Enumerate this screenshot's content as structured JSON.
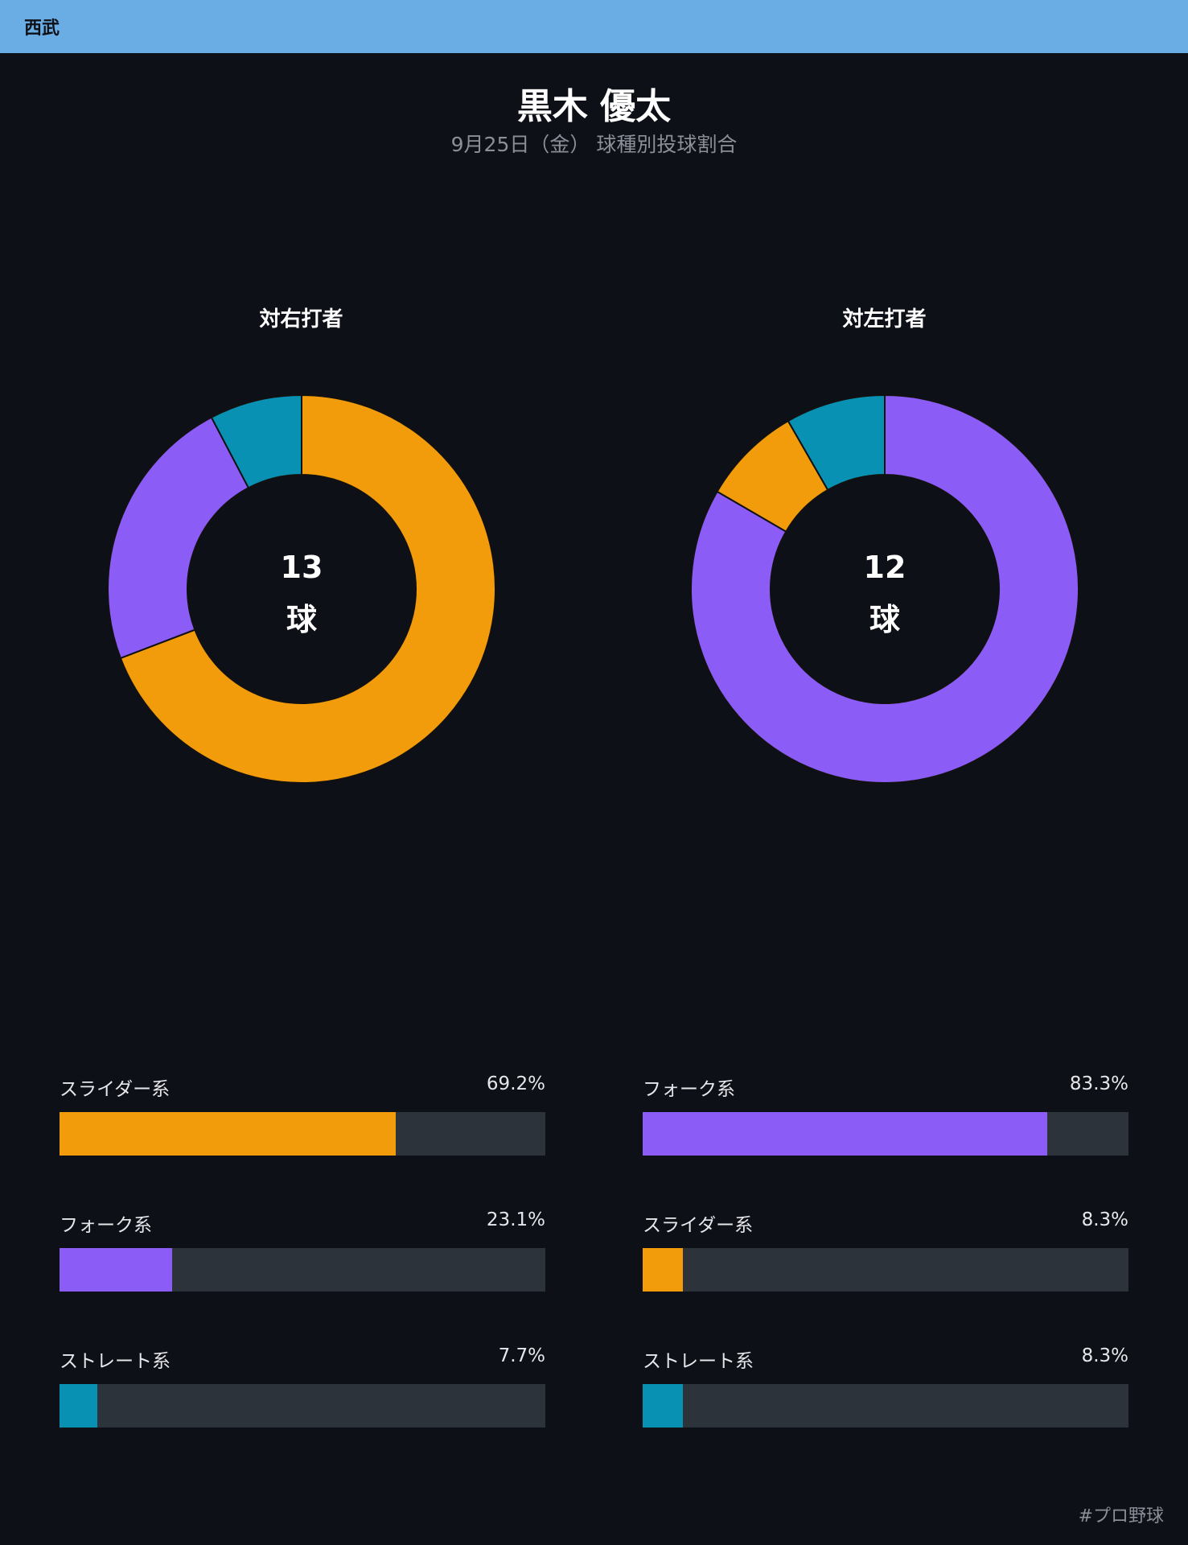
{
  "header": {
    "team": "西武",
    "bar_color": "#6aace4"
  },
  "title": "黒木 優太",
  "subtitle": "9月25日（金） 球種別投球割合",
  "colors": {
    "track": "#2d333b",
    "background": "#0e1017"
  },
  "chart_data": [
    {
      "type": "pie",
      "title": "対右打者",
      "total": "13",
      "unit": "球",
      "slices": [
        {
          "name": "スライダー系",
          "value": 69.2,
          "label": "69.2%",
          "color": "#f39c0b"
        },
        {
          "name": "フォーク系",
          "value": 23.1,
          "label": "23.1%",
          "color": "#8b5cf6"
        },
        {
          "name": "ストレート系",
          "value": 7.7,
          "label": "7.7%",
          "color": "#0891b2"
        }
      ]
    },
    {
      "type": "pie",
      "title": "対左打者",
      "total": "12",
      "unit": "球",
      "slices": [
        {
          "name": "フォーク系",
          "value": 83.3,
          "label": "83.3%",
          "color": "#8b5cf6"
        },
        {
          "name": "スライダー系",
          "value": 8.3,
          "label": "8.3%",
          "color": "#f39c0b"
        },
        {
          "name": "ストレート系",
          "value": 8.3,
          "label": "8.3%",
          "color": "#0891b2"
        }
      ]
    }
  ],
  "footer": {
    "hashtag": "#プロ野球"
  }
}
